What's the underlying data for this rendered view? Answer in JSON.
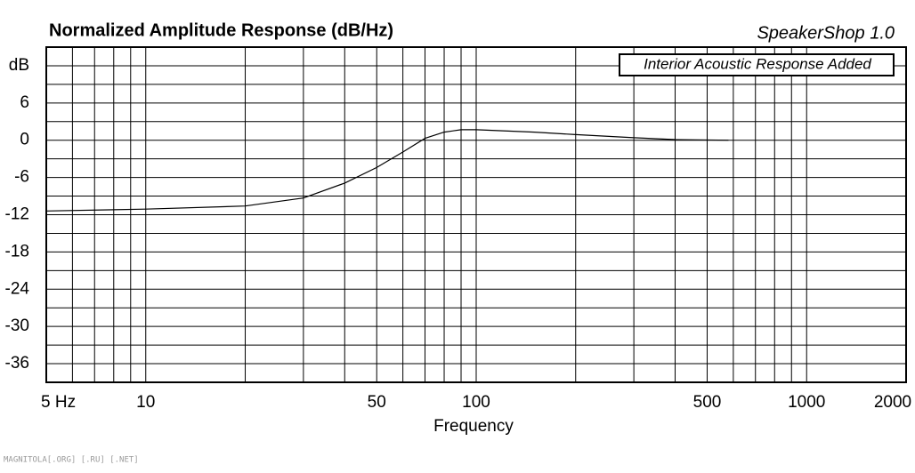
{
  "chart_data": {
    "type": "line",
    "title": "Normalized Amplitude Response (dB/Hz)",
    "brand": "SpeakerShop 1.0",
    "annotation": "Interior Acoustic Response Added",
    "x_label": "Frequency",
    "footer": "MAGNITOLA[.ORG] [.RU] [.NET]",
    "log_x": true,
    "grid": true,
    "xlim": [
      5,
      2000
    ],
    "xticks": [
      {
        "value": 5,
        "label": "5  Hz"
      },
      10,
      50,
      100,
      500,
      1000,
      2000
    ],
    "xminor": [
      6,
      7,
      8,
      9,
      20,
      30,
      40,
      60,
      70,
      80,
      90,
      200,
      300,
      400,
      600,
      700,
      800,
      900
    ],
    "ylim": [
      -39,
      15
    ],
    "yticks": [
      {
        "value": 12,
        "label": "dB"
      },
      6,
      0,
      -6,
      -12,
      -18,
      -24,
      -30,
      -36
    ],
    "yminor": [
      9,
      3,
      -3,
      -9,
      -15,
      -21,
      -27,
      -33
    ],
    "series": [
      {
        "color": "#000000",
        "x": [
          5,
          10,
          20,
          30,
          40,
          50,
          60,
          70,
          80,
          90,
          100,
          150,
          200,
          300,
          400,
          580
        ],
        "values": [
          -11.4,
          -11.1,
          -10.6,
          -9.3,
          -6.9,
          -4.4,
          -1.9,
          0.3,
          1.3,
          1.7,
          1.7,
          1.3,
          0.9,
          0.4,
          0.1,
          0
        ]
      }
    ]
  }
}
